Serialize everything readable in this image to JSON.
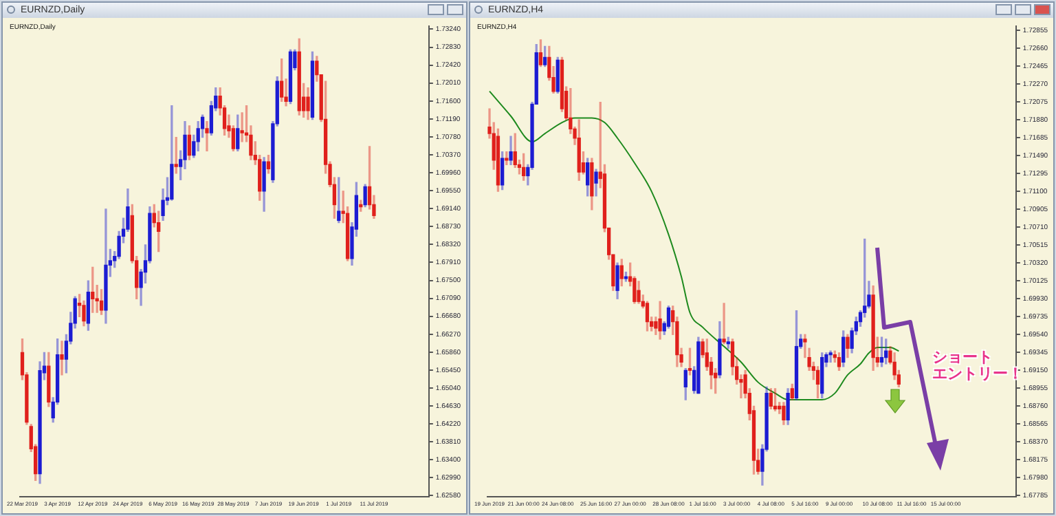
{
  "chart_data": [
    {
      "type": "candlestick",
      "title": "EURNZD,Daily",
      "subtitle": "EURNZD,Daily",
      "categories": [
        "22 Mar 2019",
        null,
        null,
        null,
        null,
        null,
        null,
        null,
        "3 Apr 2019",
        null,
        null,
        null,
        null,
        null,
        null,
        null,
        "12 Apr 2019",
        null,
        null,
        null,
        null,
        null,
        null,
        null,
        "24 Apr 2019",
        null,
        null,
        null,
        null,
        null,
        null,
        null,
        "6 May 2019",
        null,
        null,
        null,
        null,
        null,
        null,
        null,
        "16 May 2019",
        null,
        null,
        null,
        null,
        null,
        null,
        null,
        "28 May 2019",
        null,
        null,
        null,
        null,
        null,
        null,
        null,
        "7 Jun 2019",
        null,
        null,
        null,
        null,
        null,
        null,
        null,
        "19 Jun 2019",
        null,
        null,
        null,
        null,
        null,
        null,
        null,
        "1 Jul 2019",
        null,
        null,
        null,
        null,
        null,
        null,
        null,
        "11 Jul 2019",
        null,
        null,
        null,
        null,
        null,
        null,
        null,
        null,
        null,
        null,
        null,
        null
      ],
      "ohlc": [
        [
          1.6585,
          1.6616,
          1.6523,
          1.6534
        ],
        [
          1.6534,
          1.6539,
          1.6421,
          1.6426
        ],
        [
          1.6416,
          1.6421,
          1.6359,
          1.6365
        ],
        [
          1.637,
          1.6375,
          1.6293,
          1.6308
        ],
        [
          1.6308,
          1.6564,
          1.6286,
          1.6544
        ],
        [
          1.6539,
          1.6585,
          1.6523,
          1.6554
        ],
        [
          1.6554,
          1.6585,
          1.6462,
          1.6472
        ],
        [
          1.6436,
          1.6482,
          1.6426,
          1.6472
        ],
        [
          1.6472,
          1.6616,
          1.6467,
          1.658
        ],
        [
          1.658,
          1.6611,
          1.6534,
          1.657
        ],
        [
          1.657,
          1.6626,
          1.6539,
          1.6611
        ],
        [
          1.6611,
          1.6677,
          1.6605,
          1.6652
        ],
        [
          1.6652,
          1.6713,
          1.6641,
          1.6708
        ],
        [
          1.6698,
          1.6718,
          1.6667,
          1.6693
        ],
        [
          1.6693,
          1.6703,
          1.6646,
          1.6657
        ],
        [
          1.6652,
          1.6749,
          1.6636,
          1.6723
        ],
        [
          1.6723,
          1.678,
          1.6677,
          1.6708
        ],
        [
          1.6708,
          1.6739,
          1.6677,
          1.6703
        ],
        [
          1.6703,
          1.6729,
          1.6672,
          1.6682
        ],
        [
          1.6682,
          1.6913,
          1.6652,
          1.6785
        ],
        [
          1.6785,
          1.6821,
          1.6759,
          1.6795
        ],
        [
          1.6795,
          1.6816,
          1.678,
          1.6805
        ],
        [
          1.6805,
          1.6862,
          1.68,
          1.6851
        ],
        [
          1.6851,
          1.6892,
          1.6836,
          1.6867
        ],
        [
          1.6867,
          1.6959,
          1.6862,
          1.6918
        ],
        [
          1.6898,
          1.6923,
          1.679,
          1.6795
        ],
        [
          1.6795,
          1.6805,
          1.6708,
          1.6734
        ],
        [
          1.6734,
          1.6775,
          1.6693,
          1.6769
        ],
        [
          1.6769,
          1.6831,
          1.6744,
          1.6795
        ],
        [
          1.6795,
          1.6918,
          1.679,
          1.6903
        ],
        [
          1.6903,
          1.6923,
          1.6872,
          1.6882
        ],
        [
          1.6882,
          1.6908,
          1.6816,
          1.6862
        ],
        [
          1.6898,
          1.6959,
          1.6887,
          1.6933
        ],
        [
          1.6933,
          1.6985,
          1.6923,
          1.6939
        ],
        [
          1.6936,
          1.7149,
          1.6933,
          1.7015
        ],
        [
          1.7015,
          1.7077,
          1.6995,
          1.701
        ],
        [
          1.701,
          1.7046,
          1.698,
          1.7026
        ],
        [
          1.7026,
          1.7113,
          1.7005,
          1.7082
        ],
        [
          1.7082,
          1.7103,
          1.7026,
          1.7036
        ],
        [
          1.7036,
          1.7082,
          1.7031,
          1.7067
        ],
        [
          1.7067,
          1.7113,
          1.7046,
          1.7097
        ],
        [
          1.7097,
          1.7128,
          1.7077,
          1.7123
        ],
        [
          1.7097,
          1.7113,
          1.7046,
          1.7087
        ],
        [
          1.7087,
          1.7159,
          1.7082,
          1.7149
        ],
        [
          1.7144,
          1.719,
          1.7138,
          1.7171
        ],
        [
          1.7171,
          1.719,
          1.7128,
          1.7144
        ],
        [
          1.7144,
          1.7149,
          1.7082,
          1.7097
        ],
        [
          1.7103,
          1.7128,
          1.7077,
          1.7092
        ],
        [
          1.7097,
          1.7103,
          1.7046,
          1.7051
        ],
        [
          1.7051,
          1.7128,
          1.7046,
          1.7097
        ],
        [
          1.7092,
          1.7133,
          1.7067,
          1.7087
        ],
        [
          1.7087,
          1.7149,
          1.7067,
          1.7082
        ],
        [
          1.7082,
          1.7103,
          1.7026,
          1.7036
        ],
        [
          1.7036,
          1.7067,
          1.7015,
          1.7026
        ],
        [
          1.7026,
          1.7036,
          1.6933,
          1.6954
        ],
        [
          1.6954,
          1.7031,
          1.6908,
          1.7021
        ],
        [
          1.7021,
          1.7036,
          1.6995,
          1.7005
        ],
        [
          1.698,
          1.7113,
          1.6974,
          1.7108
        ],
        [
          1.7108,
          1.7215,
          1.7103,
          1.7205
        ],
        [
          1.7205,
          1.7256,
          1.7159,
          1.7169
        ],
        [
          1.7169,
          1.721,
          1.7149,
          1.7159
        ],
        [
          1.7159,
          1.7277,
          1.7154,
          1.7272
        ],
        [
          1.7236,
          1.7277,
          1.7231,
          1.7272
        ],
        [
          1.7272,
          1.7302,
          1.7128,
          1.7138
        ],
        [
          1.7169,
          1.72,
          1.7123,
          1.7138
        ],
        [
          1.7169,
          1.719,
          1.7118,
          1.7138
        ],
        [
          1.7123,
          1.7272,
          1.7118,
          1.7251
        ],
        [
          1.7251,
          1.7262,
          1.7205,
          1.722
        ],
        [
          1.722,
          1.722,
          1.7113,
          1.7118
        ],
        [
          1.7118,
          1.7205,
          1.6995,
          1.7015
        ],
        [
          1.7015,
          1.7021,
          1.6964,
          1.6969
        ],
        [
          1.6969,
          1.6985,
          1.6892,
          1.6923
        ],
        [
          1.6887,
          1.6985,
          1.6882,
          1.6908
        ],
        [
          1.6908,
          1.6954,
          1.6882,
          1.6903
        ],
        [
          1.6903,
          1.6918,
          1.6795,
          1.68
        ],
        [
          1.68,
          1.6882,
          1.6785,
          1.6872
        ],
        [
          1.6867,
          1.6974,
          1.6851,
          1.6944
        ],
        [
          1.6923,
          1.6933,
          1.6908,
          1.6918
        ],
        [
          1.6923,
          1.6969,
          1.6918,
          1.6964
        ],
        [
          1.6964,
          1.7056,
          1.6913,
          1.6923
        ],
        [
          1.6923,
          1.6944,
          1.6892,
          1.6898
        ],
        null,
        null,
        null,
        null,
        null,
        null,
        null,
        null,
        null,
        null,
        null,
        null
      ],
      "colors": [
        "#e0201c",
        "#e0201c",
        "#e0201c",
        "#e0201c",
        "#1c1cd2",
        "#1c1cd2",
        "#e0201c",
        "#1c1cd2",
        "#1c1cd2",
        "#e0201c",
        "#1c1cd2",
        "#1c1cd2",
        "#1c1cd2",
        "#e0201c",
        "#e0201c",
        "#1c1cd2",
        "#e0201c",
        "#e0201c",
        "#e0201c",
        "#1c1cd2",
        "#1c1cd2",
        "#1c1cd2",
        "#1c1cd2",
        "#1c1cd2",
        "#1c1cd2",
        "#e0201c",
        "#e0201c",
        "#1c1cd2",
        "#1c1cd2",
        "#1c1cd2",
        "#e0201c",
        "#e0201c",
        "#1c1cd2",
        "#1c1cd2",
        "#1c1cd2",
        "#e0201c",
        "#1c1cd2",
        "#1c1cd2",
        "#e0201c",
        "#1c1cd2",
        "#1c1cd2",
        "#1c1cd2",
        "#e0201c",
        "#1c1cd2",
        "#1c1cd2",
        "#e0201c",
        "#e0201c",
        "#e0201c",
        "#e0201c",
        "#1c1cd2",
        "#e0201c",
        "#e0201c",
        "#e0201c",
        "#e0201c",
        "#e0201c",
        "#1c1cd2",
        "#e0201c",
        "#1c1cd2",
        "#1c1cd2",
        "#e0201c",
        "#e0201c",
        "#1c1cd2",
        "#1c1cd2",
        "#e0201c",
        "#e0201c",
        "#e0201c",
        "#1c1cd2",
        "#e0201c",
        "#e0201c",
        "#e0201c",
        "#e0201c",
        "#e0201c",
        "#1c1cd2",
        "#e0201c",
        "#e0201c",
        "#1c1cd2",
        "#1c1cd2",
        "#e0201c",
        "#1c1cd2",
        "#e0201c",
        "#e0201c",
        null,
        null,
        null,
        null,
        null,
        null,
        null,
        null,
        null,
        null,
        null,
        null
      ],
      "ylim": [
        1.6255,
        1.7331
      ],
      "yticks": [
        {
          "value": 1.6258,
          "label": "1.62580"
        },
        {
          "value": 1.6299,
          "label": "1.62990"
        },
        {
          "value": 1.634,
          "label": "1.63400"
        },
        {
          "value": 1.6381,
          "label": "1.63810"
        },
        {
          "value": 1.6422,
          "label": "1.64220"
        },
        {
          "value": 1.6463,
          "label": "1.64630"
        },
        {
          "value": 1.6504,
          "label": "1.65040"
        },
        {
          "value": 1.6545,
          "label": "1.65450"
        },
        {
          "value": 1.6586,
          "label": "1.65860"
        },
        {
          "value": 1.6627,
          "label": "1.66270"
        },
        {
          "value": 1.6668,
          "label": "1.66680"
        },
        {
          "value": 1.6709,
          "label": "1.67090"
        },
        {
          "value": 1.675,
          "label": "1.67500"
        },
        {
          "value": 1.6791,
          "label": "1.67910"
        },
        {
          "value": 1.6832,
          "label": "1.68320"
        },
        {
          "value": 1.6873,
          "label": "1.68730"
        },
        {
          "value": 1.6914,
          "label": "1.69140"
        },
        {
          "value": 1.6955,
          "label": "1.69550"
        },
        {
          "value": 1.6996,
          "label": "1.69960"
        },
        {
          "value": 1.7037,
          "label": "1.70370"
        },
        {
          "value": 1.7078,
          "label": "1.70780"
        },
        {
          "value": 1.7119,
          "label": "1.71190"
        },
        {
          "value": 1.716,
          "label": "1.71600"
        },
        {
          "value": 1.7201,
          "label": "1.72010"
        },
        {
          "value": 1.7242,
          "label": "1.72420"
        },
        {
          "value": 1.7283,
          "label": "1.72830"
        },
        {
          "value": 1.7324,
          "label": "1.73240"
        }
      ]
    },
    {
      "type": "candlestick",
      "title": "EURNZD,H4",
      "subtitle": "EURNZD,H4",
      "categories": [
        "19 Jun 2019",
        null,
        null,
        null,
        null,
        null,
        null,
        null,
        "21 Jun 00:00",
        null,
        null,
        null,
        null,
        null,
        null,
        null,
        "24 Jun 08:00",
        null,
        null,
        null,
        null,
        null,
        null,
        null,
        null,
        "25 Jun 16:00",
        null,
        null,
        null,
        null,
        null,
        null,
        null,
        "27 Jun 00:00",
        null,
        null,
        null,
        null,
        null,
        null,
        null,
        null,
        "28 Jun 08:00",
        null,
        null,
        null,
        null,
        null,
        null,
        null,
        "1 Jul 16:00",
        null,
        null,
        null,
        null,
        null,
        null,
        null,
        "3 Jul 00:00",
        null,
        null,
        null,
        null,
        null,
        null,
        null,
        "4 Jul 08:00",
        null,
        null,
        null,
        null,
        null,
        null,
        null,
        "5 Jul 16:00",
        null,
        null,
        null,
        null,
        null,
        null,
        null,
        "9 Jul 00:00",
        null,
        null,
        null,
        null,
        null,
        null,
        null,
        null,
        "10 Jul 08:00",
        null,
        null,
        null,
        null,
        null,
        null,
        null,
        "11 Jul 16:00",
        null,
        null,
        null,
        null,
        null,
        null,
        null,
        "15 Jul 00:00",
        null,
        null,
        null,
        null,
        null,
        null,
        null,
        null,
        null,
        null,
        null,
        null,
        null,
        null,
        null,
        null
      ],
      "ohlc": [
        [
          1.718,
          1.72,
          1.7168,
          1.7173
        ],
        [
          1.7173,
          1.7185,
          1.7134,
          1.7144
        ],
        [
          1.717,
          1.7178,
          1.711,
          1.7117
        ],
        [
          1.7117,
          1.7153,
          1.7112,
          1.7146
        ],
        [
          1.7146,
          1.7153,
          1.7139,
          1.7144
        ],
        [
          1.7144,
          1.717,
          1.7139,
          1.7153
        ],
        [
          1.7153,
          1.7173,
          1.7136,
          1.7139
        ],
        [
          1.7139,
          1.7144,
          1.7129,
          1.7136
        ],
        [
          1.7136,
          1.7151,
          1.7122,
          1.7127
        ],
        [
          1.7127,
          1.7139,
          1.7117,
          1.7136
        ],
        [
          1.7136,
          1.7207,
          1.7134,
          1.7205
        ],
        [
          1.7205,
          1.727,
          1.7205,
          1.7261
        ],
        [
          1.7261,
          1.7275,
          1.7246,
          1.7248
        ],
        [
          1.7248,
          1.7268,
          1.7246,
          1.7256
        ],
        [
          1.7256,
          1.7268,
          1.7231,
          1.7234
        ],
        [
          1.7234,
          1.7246,
          1.7217,
          1.7219
        ],
        [
          1.7219,
          1.7256,
          1.7217,
          1.7253
        ],
        [
          1.7253,
          1.7256,
          1.7197,
          1.72
        ],
        [
          1.7219,
          1.7224,
          1.7188,
          1.719
        ],
        [
          1.719,
          1.7222,
          1.7173,
          1.7178
        ],
        [
          1.7178,
          1.718,
          1.7161,
          1.7168
        ],
        [
          1.7168,
          1.7188,
          1.7122,
          1.7131
        ],
        [
          1.7141,
          1.7153,
          1.7129,
          1.7131
        ],
        [
          1.7117,
          1.7146,
          1.7105,
          1.7141
        ],
        [
          1.7141,
          1.7146,
          1.709,
          1.7105
        ],
        [
          1.7119,
          1.7134,
          1.7105,
          1.7131
        ],
        [
          1.7131,
          1.7207,
          1.7114,
          1.7124
        ],
        [
          1.7129,
          1.7139,
          1.7066,
          1.707
        ],
        [
          1.707,
          1.707,
          1.7036,
          1.7041
        ],
        [
          1.7041,
          1.7041,
          1.7002,
          1.7007
        ],
        [
          1.7002,
          1.7032,
          1.6993,
          1.7029
        ],
        [
          1.7029,
          1.7036,
          1.7007,
          1.7015
        ],
        [
          1.7015,
          1.7022,
          1.7012,
          1.7017
        ],
        [
          1.7017,
          1.7032,
          1.7007,
          1.7012
        ],
        [
          1.7015,
          1.7017,
          1.6988,
          1.699
        ],
        [
          1.7002,
          1.7012,
          1.6988,
          1.699
        ],
        [
          1.699,
          1.6997,
          1.6983,
          1.6985
        ],
        [
          1.6988,
          1.699,
          1.6958,
          1.6968
        ],
        [
          1.6968,
          1.6973,
          1.6958,
          1.6963
        ],
        [
          1.6968,
          1.6973,
          1.6954,
          1.6961
        ],
        [
          1.6971,
          1.699,
          1.6949,
          1.6958
        ],
        [
          1.6958,
          1.6968,
          1.6954,
          1.6966
        ],
        [
          1.6963,
          1.6985,
          1.6961,
          1.6983
        ],
        [
          1.698,
          1.6985,
          1.6954,
          1.6968
        ],
        [
          1.6968,
          1.6973,
          1.6919,
          1.6932
        ],
        [
          1.6932,
          1.6939,
          1.6919,
          1.6924
        ],
        [
          1.6897,
          1.6917,
          1.6883,
          1.6915
        ],
        [
          1.6917,
          1.6939,
          1.691,
          1.6915
        ],
        [
          1.6893,
          1.6919,
          1.689,
          1.6915
        ],
        [
          1.689,
          1.6951,
          1.689,
          1.6946
        ],
        [
          1.6946,
          1.6949,
          1.6929,
          1.6932
        ],
        [
          1.6934,
          1.6949,
          1.6915,
          1.6919
        ],
        [
          1.6924,
          1.6929,
          1.6895,
          1.691
        ],
        [
          1.6912,
          1.6917,
          1.689,
          1.6907
        ],
        [
          1.691,
          1.6968,
          1.6907,
          1.6949
        ],
        [
          1.6949,
          1.6988,
          1.6944,
          1.6946
        ],
        [
          1.6944,
          1.6951,
          1.6939,
          1.6946
        ],
        [
          1.6946,
          1.6949,
          1.691,
          1.6919
        ],
        [
          1.6919,
          1.6929,
          1.69,
          1.6905
        ],
        [
          1.6905,
          1.691,
          1.6885,
          1.6902
        ],
        [
          1.691,
          1.6915,
          1.6885,
          1.689
        ],
        [
          1.689,
          1.6895,
          1.6861,
          1.6868
        ],
        [
          1.6871,
          1.6876,
          1.6802,
          1.6817
        ],
        [
          1.6817,
          1.6829,
          1.6802,
          1.6805
        ],
        [
          1.6805,
          1.6834,
          1.679,
          1.6829
        ],
        [
          1.6829,
          1.6897,
          1.6827,
          1.689
        ],
        [
          1.689,
          1.6895,
          1.6873,
          1.6876
        ],
        [
          1.6876,
          1.6895,
          1.6871,
          1.6873
        ],
        [
          1.6876,
          1.688,
          1.6868,
          1.6873
        ],
        [
          1.6876,
          1.688,
          1.6856,
          1.6861
        ],
        [
          1.6861,
          1.6895,
          1.6856,
          1.689
        ],
        [
          1.6895,
          1.69,
          1.6883,
          1.6885
        ],
        [
          1.6885,
          1.698,
          1.6883,
          1.6941
        ],
        [
          1.6941,
          1.6954,
          1.6939,
          1.6949
        ],
        [
          1.6949,
          1.6954,
          1.6929,
          1.6946
        ],
        [
          1.6929,
          1.6939,
          1.6915,
          1.6919
        ],
        [
          1.6919,
          1.6924,
          1.6905,
          1.6915
        ],
        [
          1.6915,
          1.6919,
          1.6885,
          1.69
        ],
        [
          1.689,
          1.6934,
          1.6885,
          1.6929
        ],
        [
          1.6924,
          1.6934,
          1.6919,
          1.6932
        ],
        [
          1.6932,
          1.6936,
          1.6924,
          1.6934
        ],
        [
          1.6932,
          1.6936,
          1.6924,
          1.6929
        ],
        [
          1.6929,
          1.6934,
          1.6915,
          1.6919
        ],
        [
          1.6924,
          1.6958,
          1.6919,
          1.6951
        ],
        [
          1.6951,
          1.6954,
          1.6929,
          1.6939
        ],
        [
          1.6939,
          1.6961,
          1.6934,
          1.6958
        ],
        [
          1.6958,
          1.6973,
          1.6954,
          1.6968
        ],
        [
          1.6968,
          1.698,
          1.6963,
          1.6978
        ],
        [
          1.6978,
          1.7058,
          1.6973,
          1.6985
        ],
        [
          1.6985,
          1.7012,
          1.6983,
          1.6997
        ],
        [
          1.6997,
          1.7007,
          1.6915,
          1.6929
        ],
        [
          1.6929,
          1.6951,
          1.6919,
          1.6924
        ],
        [
          1.6924,
          1.6951,
          1.6919,
          1.6929
        ],
        [
          1.6929,
          1.6949,
          1.6922,
          1.6936
        ],
        [
          1.6936,
          1.6941,
          1.6922,
          1.6924
        ],
        [
          1.6924,
          1.6934,
          1.6905,
          1.691
        ],
        [
          1.691,
          1.6915,
          1.6897,
          1.69
        ],
        null,
        null,
        null,
        null,
        null,
        null,
        null,
        null,
        null,
        null,
        null,
        null,
        null,
        null,
        null,
        null,
        null,
        null,
        null,
        null,
        null,
        null,
        null,
        null,
        null,
        null,
        null
      ],
      "colors": [
        "#e0201c",
        "#e0201c",
        "#e0201c",
        "#1c1cd2",
        "#e0201c",
        "#1c1cd2",
        "#e0201c",
        "#e0201c",
        "#e0201c",
        "#1c1cd2",
        "#1c1cd2",
        "#1c1cd2",
        "#e0201c",
        "#1c1cd2",
        "#e0201c",
        "#e0201c",
        "#1c1cd2",
        "#e0201c",
        "#e0201c",
        "#e0201c",
        "#e0201c",
        "#e0201c",
        "#e0201c",
        "#1c1cd2",
        "#e0201c",
        "#1c1cd2",
        "#e0201c",
        "#e0201c",
        "#e0201c",
        "#e0201c",
        "#1c1cd2",
        "#e0201c",
        "#1c1cd2",
        "#e0201c",
        "#e0201c",
        "#e0201c",
        "#e0201c",
        "#e0201c",
        "#e0201c",
        "#e0201c",
        "#e0201c",
        "#1c1cd2",
        "#1c1cd2",
        "#e0201c",
        "#e0201c",
        "#e0201c",
        "#1c1cd2",
        "#e0201c",
        "#1c1cd2",
        "#1c1cd2",
        "#e0201c",
        "#e0201c",
        "#e0201c",
        "#e0201c",
        "#1c1cd2",
        "#e0201c",
        "#1c1cd2",
        "#e0201c",
        "#e0201c",
        "#e0201c",
        "#e0201c",
        "#e0201c",
        "#e0201c",
        "#e0201c",
        "#1c1cd2",
        "#1c1cd2",
        "#e0201c",
        "#e0201c",
        "#e0201c",
        "#e0201c",
        "#1c1cd2",
        "#e0201c",
        "#1c1cd2",
        "#1c1cd2",
        "#e0201c",
        "#e0201c",
        "#e0201c",
        "#e0201c",
        "#1c1cd2",
        "#1c1cd2",
        "#1c1cd2",
        "#e0201c",
        "#e0201c",
        "#1c1cd2",
        "#e0201c",
        "#1c1cd2",
        "#1c1cd2",
        "#1c1cd2",
        "#1c1cd2",
        "#1c1cd2",
        "#e0201c",
        "#e0201c",
        "#1c1cd2",
        "#1c1cd2",
        "#e0201c",
        "#e0201c",
        "#e0201c",
        null,
        null,
        null,
        null,
        null,
        null,
        null,
        null,
        null,
        null,
        null,
        null,
        null,
        null,
        null,
        null,
        null,
        null,
        null,
        null,
        null,
        null,
        null,
        null,
        null,
        null,
        null
      ],
      "series": [
        {
          "type": "line",
          "color": "#1e8a1e",
          "values": [
            1.7219,
            null,
            null,
            null,
            null,
            1.7192,
            null,
            null,
            null,
            null,
            1.7164,
            null,
            null,
            1.7173,
            null,
            null,
            null,
            1.7185,
            null,
            null,
            1.719,
            null,
            null,
            null,
            1.719,
            null,
            null,
            1.7185,
            null,
            null,
            1.7168,
            null,
            null,
            null,
            1.7141,
            null,
            null,
            null,
            1.711,
            null,
            null,
            null,
            1.7063,
            null,
            null,
            1.7017,
            null,
            1.6978,
            null,
            null,
            1.6962,
            null,
            null,
            null,
            null,
            1.6941,
            null,
            null,
            null,
            1.6924,
            null,
            null,
            null,
            1.6902,
            null,
            null,
            null,
            1.689,
            null,
            null,
            1.6883,
            null,
            null,
            null,
            1.6883,
            null,
            null,
            null,
            1.6883,
            null,
            null,
            1.689,
            null,
            null,
            1.691,
            null,
            null,
            1.6922,
            null,
            1.6934,
            null,
            1.694,
            null,
            null,
            1.694,
            null,
            1.6936,
            null,
            null,
            null,
            null,
            null,
            null,
            null,
            null,
            null,
            null,
            null,
            null,
            null,
            null,
            null,
            null,
            null,
            null,
            null,
            null,
            null,
            null,
            null,
            null,
            null,
            null,
            null
          ]
        }
      ],
      "ylim": [
        1.6777,
        1.729
      ],
      "yticks": [
        {
          "value": 1.67785,
          "label": "1.67785"
        },
        {
          "value": 1.6798,
          "label": "1.67980"
        },
        {
          "value": 1.68175,
          "label": "1.68175"
        },
        {
          "value": 1.6837,
          "label": "1.68370"
        },
        {
          "value": 1.68565,
          "label": "1.68565"
        },
        {
          "value": 1.6876,
          "label": "1.68760"
        },
        {
          "value": 1.68955,
          "label": "1.68955"
        },
        {
          "value": 1.6915,
          "label": "1.69150"
        },
        {
          "value": 1.69345,
          "label": "1.69345"
        },
        {
          "value": 1.6954,
          "label": "1.69540"
        },
        {
          "value": 1.69735,
          "label": "1.69735"
        },
        {
          "value": 1.6993,
          "label": "1.69930"
        },
        {
          "value": 1.70125,
          "label": "1.70125"
        },
        {
          "value": 1.7032,
          "label": "1.70320"
        },
        {
          "value": 1.70515,
          "label": "1.70515"
        },
        {
          "value": 1.7071,
          "label": "1.70710"
        },
        {
          "value": 1.70905,
          "label": "1.70905"
        },
        {
          "value": 1.711,
          "label": "1.71100"
        },
        {
          "value": 1.71295,
          "label": "1.71295"
        },
        {
          "value": 1.7149,
          "label": "1.71490"
        },
        {
          "value": 1.71685,
          "label": "1.71685"
        },
        {
          "value": 1.7188,
          "label": "1.71880"
        },
        {
          "value": 1.72075,
          "label": "1.72075"
        },
        {
          "value": 1.7227,
          "label": "1.72270"
        },
        {
          "value": 1.72465,
          "label": "1.72465"
        },
        {
          "value": 1.7266,
          "label": "1.72660"
        },
        {
          "value": 1.72855,
          "label": "1.72855"
        }
      ],
      "annotations": [
        "ショートエントリー！"
      ]
    }
  ]
}
